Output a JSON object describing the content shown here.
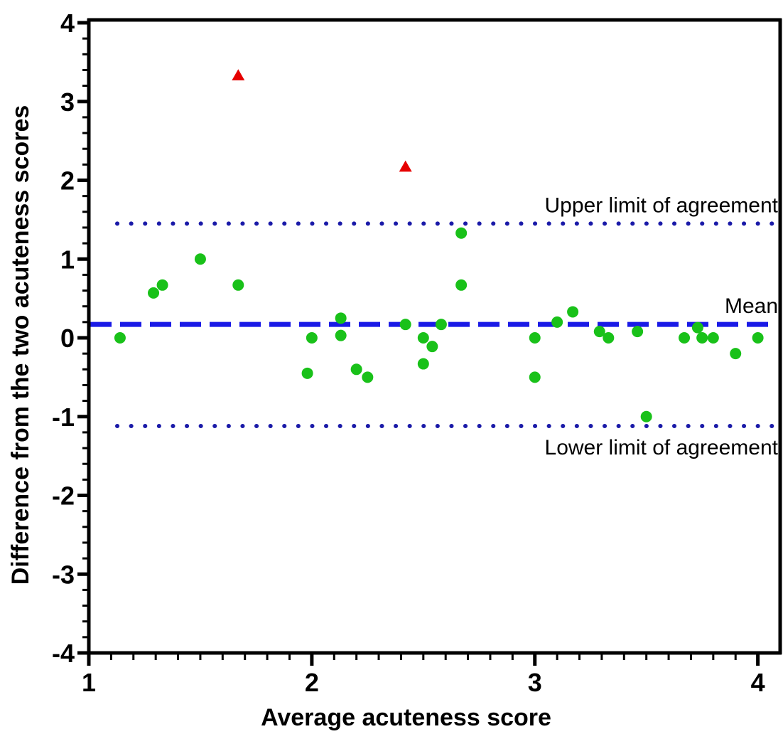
{
  "chart_data": {
    "type": "scatter",
    "title": "",
    "xlabel": "Average acuteness score",
    "ylabel": "Difference from the two acuteness scores",
    "xlim": [
      1,
      4.1
    ],
    "ylim": [
      -4,
      4
    ],
    "x_ticks": [
      1,
      2,
      3,
      4
    ],
    "y_ticks": [
      -4,
      -3,
      -2,
      -1,
      0,
      1,
      2,
      3,
      4
    ],
    "x_tick_labels": [
      "1",
      "2",
      "3",
      "4"
    ],
    "y_tick_labels": [
      "-4",
      "-3",
      "-2",
      "-1",
      "0",
      "1",
      "2",
      "3",
      "4"
    ],
    "grid": false,
    "reference_lines": [
      {
        "label": "Upper limit of agreement",
        "y": 1.45,
        "style": "dotted",
        "color": "#1a1aa8"
      },
      {
        "label": "Mean",
        "y": 0.17,
        "style": "dashed",
        "color": "#1a1ae6"
      },
      {
        "label": "Lower limit of agreement",
        "y": -1.12,
        "style": "dotted",
        "color": "#1a1aa8"
      }
    ],
    "series": [
      {
        "marker": "circle",
        "color": "#19c119",
        "points": [
          [
            1.14,
            0.0
          ],
          [
            1.29,
            0.57
          ],
          [
            1.33,
            0.67
          ],
          [
            1.5,
            1.0
          ],
          [
            1.67,
            0.67
          ],
          [
            1.98,
            -0.45
          ],
          [
            2.0,
            0.0
          ],
          [
            2.13,
            0.25
          ],
          [
            2.13,
            0.03
          ],
          [
            2.2,
            -0.4
          ],
          [
            2.25,
            -0.5
          ],
          [
            2.42,
            0.17
          ],
          [
            2.5,
            0.0
          ],
          [
            2.5,
            -0.33
          ],
          [
            2.54,
            -0.11
          ],
          [
            2.58,
            0.17
          ],
          [
            2.67,
            1.33
          ],
          [
            2.67,
            0.67
          ],
          [
            3.0,
            0.0
          ],
          [
            3.0,
            -0.5
          ],
          [
            3.1,
            0.2
          ],
          [
            3.17,
            0.33
          ],
          [
            3.29,
            0.08
          ],
          [
            3.33,
            0.0
          ],
          [
            3.46,
            0.08
          ],
          [
            3.5,
            -1.0
          ],
          [
            3.67,
            0.0
          ],
          [
            3.73,
            0.13
          ],
          [
            3.75,
            0.0
          ],
          [
            3.8,
            0.0
          ],
          [
            3.9,
            -0.2
          ],
          [
            4.0,
            0.0
          ]
        ]
      },
      {
        "marker": "triangle",
        "color": "#e60000",
        "points": [
          [
            1.67,
            3.33
          ],
          [
            2.42,
            2.17
          ]
        ]
      }
    ]
  }
}
